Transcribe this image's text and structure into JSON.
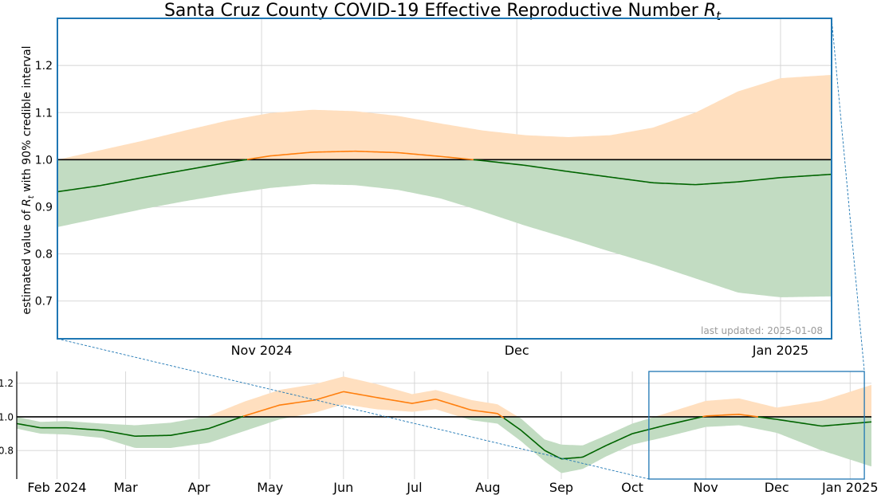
{
  "chart_data": [
    {
      "type": "area",
      "panel": "main",
      "title": "Santa Cruz County COVID-19 Effective Reproductive Number",
      "title_symbol": "R",
      "title_symbol_sub": "t",
      "ylabel_prefix": "estimated value of ",
      "ylabel_symbol": "R",
      "ylabel_symbol_sub": "t",
      "ylabel_suffix": " with 90% credible interval",
      "annotation": "last updated: 2025-01-08",
      "xlim": [
        "2024-10-08",
        "2025-01-07"
      ],
      "ylim": [
        0.62,
        1.3
      ],
      "x_ticks": [
        {
          "date": "2024-11-01",
          "label": "Nov 2024"
        },
        {
          "date": "2024-12-01",
          "label": "Dec"
        },
        {
          "date": "2025-01-01",
          "label": "Jan 2025"
        }
      ],
      "y_ticks": [
        {
          "value": 0.7,
          "label": "0.7"
        },
        {
          "value": 0.8,
          "label": "0.8"
        },
        {
          "value": 0.9,
          "label": "0.9"
        },
        {
          "value": 1.0,
          "label": "1.0"
        },
        {
          "value": 1.1,
          "label": "1.1"
        },
        {
          "value": 1.2,
          "label": "1.2"
        }
      ],
      "reference_line": 1.0,
      "grid": true,
      "colors": {
        "above": "#ff7f0e",
        "below": "#006400",
        "above_band": "#ffdfbf",
        "below_band": "#c2dcc2",
        "frame": "#1f77b4",
        "reference": "#000000"
      },
      "series": [
        {
          "x": [
            "2024-10-08",
            "2024-10-13",
            "2024-10-18",
            "2024-10-23",
            "2024-10-28",
            "2024-11-02",
            "2024-11-07",
            "2024-11-12",
            "2024-11-17",
            "2024-11-22",
            "2024-11-27",
            "2024-12-02",
            "2024-12-07",
            "2024-12-12",
            "2024-12-17",
            "2024-12-22",
            "2024-12-27",
            "2025-01-01",
            "2025-01-07"
          ],
          "y": [
            0.932,
            0.945,
            0.962,
            0.978,
            0.994,
            1.008,
            1.016,
            1.018,
            1.015,
            1.007,
            0.998,
            0.988,
            0.975,
            0.963,
            0.951,
            0.947,
            0.953,
            0.962,
            0.969
          ],
          "lower": [
            0.857,
            0.876,
            0.895,
            0.912,
            0.927,
            0.94,
            0.948,
            0.946,
            0.936,
            0.918,
            0.89,
            0.86,
            0.833,
            0.805,
            0.778,
            0.748,
            0.718,
            0.708,
            0.71
          ],
          "upper": [
            1.0,
            1.02,
            1.04,
            1.062,
            1.083,
            1.099,
            1.106,
            1.103,
            1.093,
            1.077,
            1.062,
            1.052,
            1.048,
            1.052,
            1.068,
            1.1,
            1.145,
            1.173,
            1.18
          ]
        }
      ]
    },
    {
      "type": "area",
      "panel": "overview",
      "xlim": [
        "2024-01-15",
        "2025-01-10"
      ],
      "ylim": [
        0.63,
        1.27
      ],
      "zoom_window": [
        "2024-10-08",
        "2025-01-07"
      ],
      "x_ticks": [
        {
          "date": "2024-02-01",
          "label": "Feb 2024"
        },
        {
          "date": "2024-03-01",
          "label": "Mar"
        },
        {
          "date": "2024-04-01",
          "label": "Apr"
        },
        {
          "date": "2024-05-01",
          "label": "May"
        },
        {
          "date": "2024-06-01",
          "label": "Jun"
        },
        {
          "date": "2024-07-01",
          "label": "Jul"
        },
        {
          "date": "2024-08-01",
          "label": "Aug"
        },
        {
          "date": "2024-09-01",
          "label": "Sep"
        },
        {
          "date": "2024-10-01",
          "label": "Oct"
        },
        {
          "date": "2024-11-01",
          "label": "Nov"
        },
        {
          "date": "2024-12-01",
          "label": "Dec"
        },
        {
          "date": "2025-01-01",
          "label": "Jan 2025"
        }
      ],
      "y_ticks": [
        {
          "value": 0.8,
          "label": "0.8"
        },
        {
          "value": 1.0,
          "label": "1.0"
        },
        {
          "value": 1.2,
          "label": "1.2"
        }
      ],
      "reference_line": 1.0,
      "grid": true,
      "series": [
        {
          "x": [
            "2024-01-15",
            "2024-01-25",
            "2024-02-05",
            "2024-02-20",
            "2024-03-05",
            "2024-03-20",
            "2024-04-05",
            "2024-04-20",
            "2024-05-05",
            "2024-05-20",
            "2024-06-01",
            "2024-06-15",
            "2024-06-30",
            "2024-07-10",
            "2024-07-25",
            "2024-08-05",
            "2024-08-15",
            "2024-08-25",
            "2024-09-01",
            "2024-09-10",
            "2024-09-20",
            "2024-10-01",
            "2024-10-15",
            "2024-11-01",
            "2024-11-15",
            "2024-12-01",
            "2024-12-20",
            "2025-01-10"
          ],
          "y": [
            0.96,
            0.935,
            0.935,
            0.92,
            0.885,
            0.89,
            0.93,
            1.005,
            1.07,
            1.1,
            1.15,
            1.115,
            1.08,
            1.105,
            1.04,
            1.02,
            0.92,
            0.8,
            0.75,
            0.76,
            0.83,
            0.9,
            0.95,
            1.005,
            1.015,
            0.985,
            0.945,
            0.97
          ],
          "lower": [
            0.93,
            0.9,
            0.895,
            0.875,
            0.815,
            0.815,
            0.845,
            0.915,
            0.985,
            1.025,
            1.075,
            1.045,
            1.03,
            1.045,
            0.98,
            0.96,
            0.855,
            0.735,
            0.665,
            0.69,
            0.765,
            0.835,
            0.88,
            0.94,
            0.95,
            0.905,
            0.8,
            0.705
          ],
          "upper": [
            1.0,
            0.97,
            0.975,
            0.96,
            0.95,
            0.965,
            1.005,
            1.09,
            1.16,
            1.195,
            1.24,
            1.195,
            1.135,
            1.16,
            1.1,
            1.075,
            0.99,
            0.865,
            0.835,
            0.83,
            0.89,
            0.96,
            1.02,
            1.095,
            1.11,
            1.055,
            1.095,
            1.19
          ]
        }
      ]
    }
  ]
}
